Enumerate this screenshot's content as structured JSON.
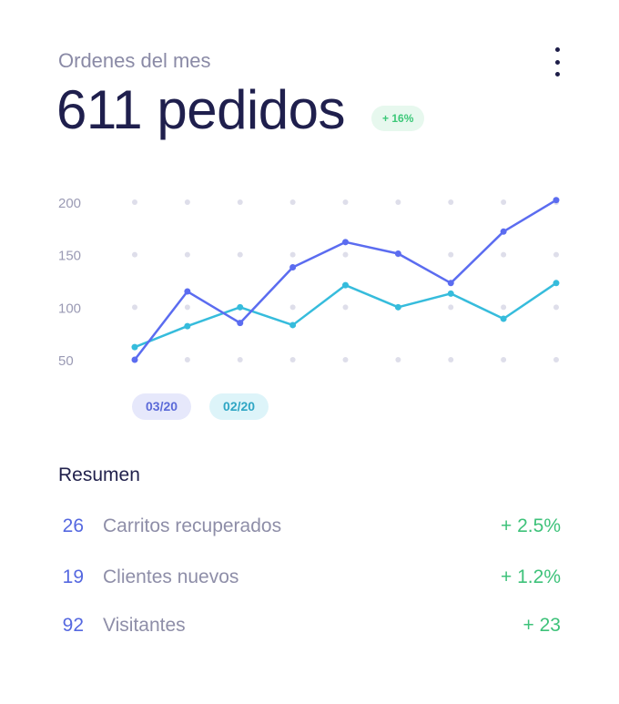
{
  "header": {
    "subtitle": "Ordenes del mes",
    "headline": "611 pedidos",
    "delta_badge": "+ 16%"
  },
  "chart_data": {
    "type": "line",
    "x": [
      1,
      2,
      3,
      4,
      5,
      6,
      7,
      8,
      9
    ],
    "ylim": [
      50,
      200
    ],
    "yticks": [
      200,
      150,
      100,
      50
    ],
    "grid": "dotted",
    "legend_position": "bottom-left",
    "series": [
      {
        "name": "03/20",
        "color": "#5b6cf0",
        "values": [
          50,
          115,
          85,
          138,
          162,
          151,
          123,
          172,
          202
        ]
      },
      {
        "name": "02/20",
        "color": "#36bcdc",
        "values": [
          62,
          82,
          100,
          83,
          121,
          100,
          113,
          89,
          123
        ]
      }
    ]
  },
  "summary": {
    "title": "Resumen",
    "rows": [
      {
        "count": "26",
        "label": "Carritos recuperados",
        "delta": "+ 2.5%"
      },
      {
        "count": "19",
        "label": "Clientes nuevos",
        "delta": "+ 1.2%"
      },
      {
        "count": "92",
        "label": "Visitantes",
        "delta": "+ 23"
      }
    ]
  },
  "colors": {
    "title": "#1f1f4d",
    "muted": "#8a8aa6",
    "accent": "#5b6cf0",
    "accent_secondary": "#36bcdc",
    "positive": "#3ec27a",
    "positive_bg": "#e7f8ee"
  },
  "icons": {
    "menu": "more-vertical-icon"
  }
}
